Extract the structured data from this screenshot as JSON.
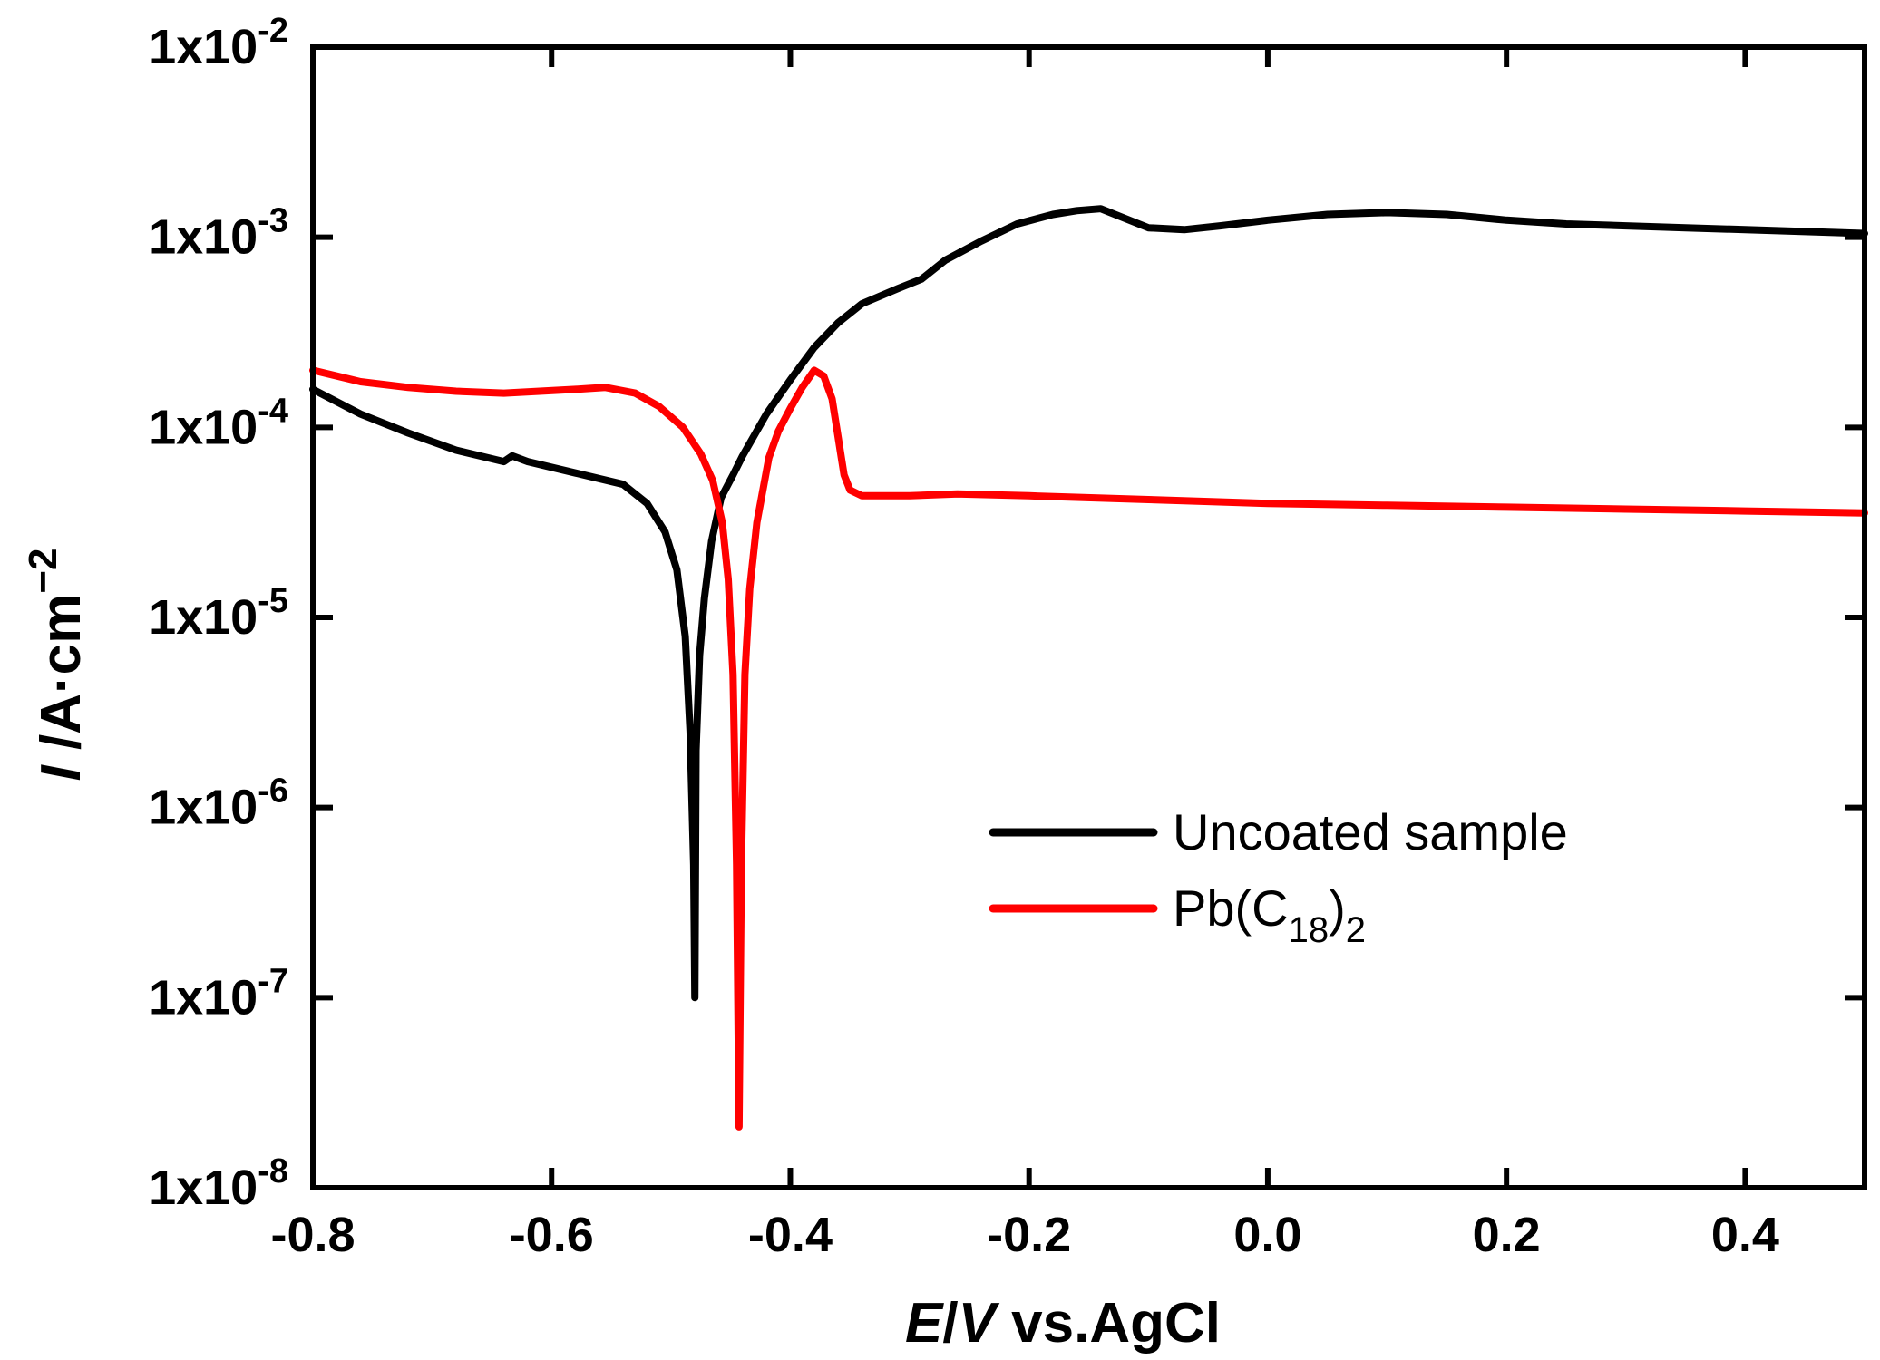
{
  "chart_data": {
    "type": "line",
    "title": "",
    "xlabel": {
      "italic": "E",
      "sep": "/",
      "italic2": "V",
      "rest": " vs.AgCl"
    },
    "ylabel": {
      "italic": "I",
      "rest": " /A·cm",
      "sup": "−2"
    },
    "xlim": [
      -0.8,
      0.5
    ],
    "ylim_log10": [
      -8,
      -2
    ],
    "yscale": "log",
    "x_ticks": [
      {
        "v": -0.8,
        "label": "-0.8"
      },
      {
        "v": -0.6,
        "label": "-0.6"
      },
      {
        "v": -0.4,
        "label": "-0.4"
      },
      {
        "v": -0.2,
        "label": "-0.2"
      },
      {
        "v": 0.0,
        "label": "0.0"
      },
      {
        "v": 0.2,
        "label": "0.2"
      },
      {
        "v": 0.4,
        "label": "0.4"
      }
    ],
    "y_ticks": [
      {
        "exp": -8,
        "base": "1x10",
        "sup": "-8"
      },
      {
        "exp": -7,
        "base": "1x10",
        "sup": "-7"
      },
      {
        "exp": -6,
        "base": "1x10",
        "sup": "-6"
      },
      {
        "exp": -5,
        "base": "1x10",
        "sup": "-5"
      },
      {
        "exp": -4,
        "base": "1x10",
        "sup": "-4"
      },
      {
        "exp": -3,
        "base": "1x10",
        "sup": "-3"
      },
      {
        "exp": -2,
        "base": "1x10",
        "sup": "-2"
      }
    ],
    "legend_position": "center-right",
    "series": [
      {
        "name": "Uncoated sample",
        "legend_label": {
          "main": "Uncoated sample"
        },
        "color": "#000000",
        "points": [
          [
            -0.8,
            -3.8
          ],
          [
            -0.76,
            -3.93
          ],
          [
            -0.72,
            -4.03
          ],
          [
            -0.68,
            -4.12
          ],
          [
            -0.64,
            -4.18
          ],
          [
            -0.633,
            -4.15
          ],
          [
            -0.62,
            -4.18
          ],
          [
            -0.58,
            -4.24
          ],
          [
            -0.54,
            -4.3
          ],
          [
            -0.52,
            -4.4
          ],
          [
            -0.505,
            -4.55
          ],
          [
            -0.495,
            -4.75
          ],
          [
            -0.488,
            -5.1
          ],
          [
            -0.484,
            -5.6
          ],
          [
            -0.481,
            -6.3
          ],
          [
            -0.48,
            -7.0
          ],
          [
            -0.479,
            -5.7
          ],
          [
            -0.476,
            -5.2
          ],
          [
            -0.472,
            -4.9
          ],
          [
            -0.466,
            -4.6
          ],
          [
            -0.458,
            -4.37
          ],
          [
            -0.448,
            -4.25
          ],
          [
            -0.44,
            -4.15
          ],
          [
            -0.42,
            -3.93
          ],
          [
            -0.4,
            -3.75
          ],
          [
            -0.38,
            -3.58
          ],
          [
            -0.36,
            -3.45
          ],
          [
            -0.34,
            -3.35
          ],
          [
            -0.31,
            -3.27
          ],
          [
            -0.29,
            -3.22
          ],
          [
            -0.27,
            -3.12
          ],
          [
            -0.24,
            -3.02
          ],
          [
            -0.21,
            -2.93
          ],
          [
            -0.18,
            -2.88
          ],
          [
            -0.16,
            -2.86
          ],
          [
            -0.14,
            -2.85
          ],
          [
            -0.12,
            -2.9
          ],
          [
            -0.1,
            -2.95
          ],
          [
            -0.07,
            -2.96
          ],
          [
            -0.04,
            -2.94
          ],
          [
            0.0,
            -2.91
          ],
          [
            0.05,
            -2.88
          ],
          [
            0.1,
            -2.87
          ],
          [
            0.15,
            -2.88
          ],
          [
            0.2,
            -2.91
          ],
          [
            0.25,
            -2.93
          ],
          [
            0.3,
            -2.94
          ],
          [
            0.35,
            -2.95
          ],
          [
            0.4,
            -2.96
          ],
          [
            0.45,
            -2.97
          ],
          [
            0.5,
            -2.98
          ]
        ]
      },
      {
        "name": "Pb(C18)2",
        "legend_label": {
          "main": "Pb(C",
          "sub": "18",
          "mid": ")",
          "sub2": "2"
        },
        "color": "#ff0000",
        "points": [
          [
            -0.8,
            -3.7
          ],
          [
            -0.76,
            -3.76
          ],
          [
            -0.72,
            -3.79
          ],
          [
            -0.68,
            -3.81
          ],
          [
            -0.64,
            -3.82
          ],
          [
            -0.61,
            -3.81
          ],
          [
            -0.58,
            -3.8
          ],
          [
            -0.555,
            -3.79
          ],
          [
            -0.53,
            -3.82
          ],
          [
            -0.51,
            -3.89
          ],
          [
            -0.49,
            -4.0
          ],
          [
            -0.475,
            -4.14
          ],
          [
            -0.465,
            -4.28
          ],
          [
            -0.457,
            -4.5
          ],
          [
            -0.452,
            -4.8
          ],
          [
            -0.448,
            -5.3
          ],
          [
            -0.445,
            -6.3
          ],
          [
            -0.443,
            -7.68
          ],
          [
            -0.441,
            -6.3
          ],
          [
            -0.438,
            -5.3
          ],
          [
            -0.434,
            -4.85
          ],
          [
            -0.428,
            -4.5
          ],
          [
            -0.418,
            -4.16
          ],
          [
            -0.41,
            -4.02
          ],
          [
            -0.4,
            -3.9
          ],
          [
            -0.39,
            -3.79
          ],
          [
            -0.38,
            -3.7
          ],
          [
            -0.372,
            -3.73
          ],
          [
            -0.365,
            -3.85
          ],
          [
            -0.36,
            -4.05
          ],
          [
            -0.355,
            -4.25
          ],
          [
            -0.35,
            -4.33
          ],
          [
            -0.34,
            -4.36
          ],
          [
            -0.3,
            -4.36
          ],
          [
            -0.26,
            -4.35
          ],
          [
            -0.2,
            -4.36
          ],
          [
            -0.1,
            -4.38
          ],
          [
            0.0,
            -4.4
          ],
          [
            0.1,
            -4.41
          ],
          [
            0.2,
            -4.42
          ],
          [
            0.3,
            -4.43
          ],
          [
            0.4,
            -4.44
          ],
          [
            0.5,
            -4.45
          ]
        ]
      }
    ]
  }
}
